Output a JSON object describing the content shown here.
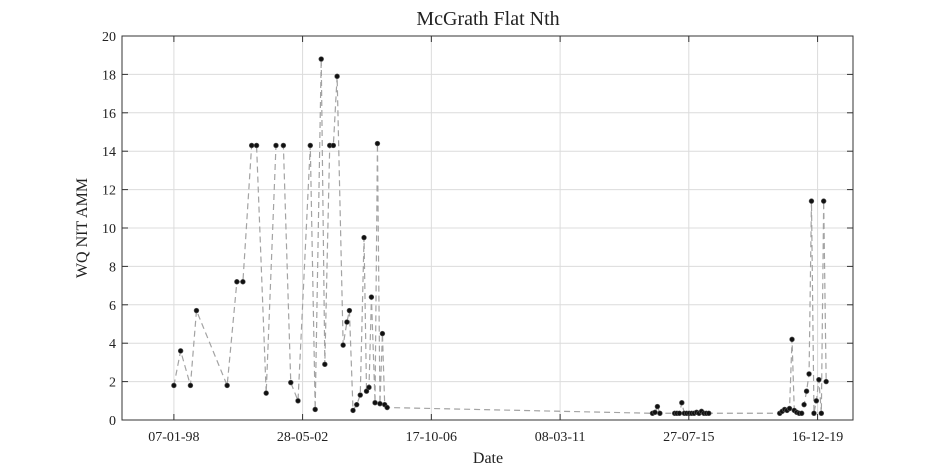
{
  "chart_data": {
    "type": "line",
    "title": "McGrath Flat Nth",
    "xlabel": "Date",
    "ylabel": "WQ NIT AMM",
    "ylim": [
      0,
      20
    ],
    "xlim": [
      "1996-04-01",
      "2021-03-01"
    ],
    "grid": true,
    "yticks": [
      0,
      2,
      4,
      6,
      8,
      10,
      12,
      14,
      16,
      18,
      20
    ],
    "xticks": [
      {
        "date": "1998-01-07",
        "label": "07-01-98"
      },
      {
        "date": "2002-05-28",
        "label": "28-05-02"
      },
      {
        "date": "2006-10-17",
        "label": "17-10-06"
      },
      {
        "date": "2011-03-08",
        "label": "08-03-11"
      },
      {
        "date": "2015-07-27",
        "label": "27-07-15"
      },
      {
        "date": "2019-12-16",
        "label": "16-12-19"
      }
    ],
    "series": [
      {
        "line_style": "dashed",
        "line_color": "#a3a3a3",
        "marker_color": "#111111",
        "x": [
          "1998-01-07",
          "1998-04-01",
          "1998-08-01",
          "1998-10-15",
          "1999-11-01",
          "2000-03-01",
          "2000-05-15",
          "2000-09-01",
          "2000-11-01",
          "2001-03-01",
          "2001-07-01",
          "2001-10-01",
          "2002-01-01",
          "2002-04-01",
          "2002-09-01",
          "2002-11-01",
          "2003-01-15",
          "2003-03-01",
          "2003-05-01",
          "2003-06-15",
          "2003-08-01",
          "2003-10-15",
          "2003-12-01",
          "2004-01-01",
          "2004-02-15",
          "2004-04-01",
          "2004-05-15",
          "2004-07-01",
          "2004-08-01",
          "2004-09-01",
          "2004-10-01",
          "2004-11-15",
          "2004-12-15",
          "2005-01-15",
          "2005-02-15",
          "2005-03-15",
          "2005-04-15",
          "2014-05-01",
          "2014-06-01",
          "2014-07-01",
          "2014-08-01",
          "2015-02-01",
          "2015-03-01",
          "2015-04-01",
          "2015-05-01",
          "2015-06-01",
          "2015-07-01",
          "2015-08-01",
          "2015-09-01",
          "2015-10-01",
          "2015-11-01",
          "2015-12-01",
          "2016-01-01",
          "2016-02-01",
          "2016-03-01",
          "2016-04-01",
          "2018-09-01",
          "2018-10-01",
          "2018-11-01",
          "2018-12-01",
          "2019-01-01",
          "2019-02-01",
          "2019-03-01",
          "2019-04-01",
          "2019-05-01",
          "2019-06-01",
          "2019-07-01",
          "2019-08-01",
          "2019-09-01",
          "2019-10-01",
          "2019-11-01",
          "2019-12-01",
          "2020-01-01",
          "2020-02-01",
          "2020-03-01",
          "2020-04-01"
        ],
        "values": [
          1.8,
          3.6,
          1.8,
          5.7,
          1.8,
          7.2,
          7.2,
          14.3,
          14.3,
          1.4,
          14.3,
          14.3,
          1.95,
          1.0,
          14.3,
          0.55,
          18.8,
          2.9,
          14.3,
          14.3,
          17.9,
          3.9,
          5.1,
          5.7,
          0.5,
          0.8,
          1.3,
          9.5,
          1.5,
          1.7,
          6.4,
          0.9,
          14.4,
          0.85,
          4.5,
          0.8,
          0.65,
          0.35,
          0.4,
          0.7,
          0.35,
          0.35,
          0.35,
          0.35,
          0.9,
          0.35,
          0.35,
          0.35,
          0.35,
          0.35,
          0.4,
          0.35,
          0.45,
          0.35,
          0.35,
          0.35,
          0.35,
          0.45,
          0.55,
          0.5,
          0.6,
          4.2,
          0.5,
          0.4,
          0.35,
          0.35,
          0.8,
          1.5,
          2.4,
          11.4,
          0.35,
          1.0,
          2.1,
          0.35,
          11.4,
          2.0
        ]
      }
    ]
  }
}
